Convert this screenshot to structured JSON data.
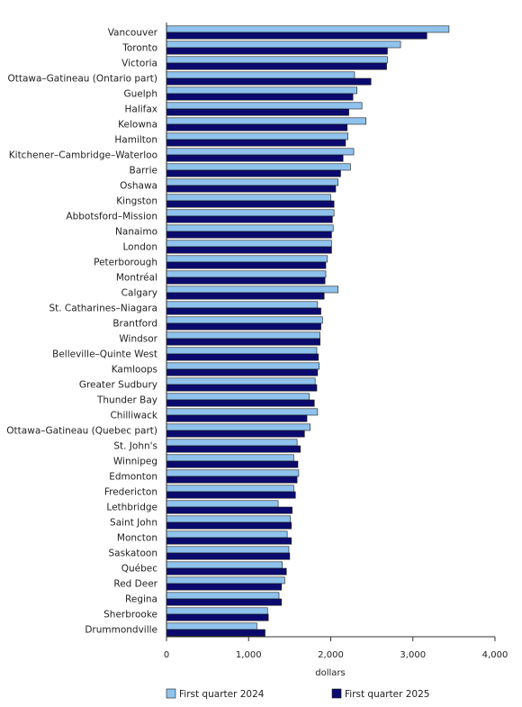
{
  "chart_data": {
    "type": "bar",
    "orientation": "horizontal",
    "categories": [
      "Vancouver",
      "Toronto",
      "Victoria",
      "Ottawa–Gatineau (Ontario part)",
      "Guelph",
      "Halifax",
      "Kelowna",
      "Hamilton",
      "Kitchener–Cambridge–Waterloo",
      "Barrie",
      "Oshawa",
      "Kingston",
      "Abbotsford–Mission",
      "Nanaimo",
      "London",
      "Peterborough",
      "Montréal",
      "Calgary",
      "St. Catharines–Niagara",
      "Brantford",
      "Windsor",
      "Belleville–Quinte West",
      "Kamloops",
      "Greater Sudbury",
      "Thunder Bay",
      "Chilliwack",
      "Ottawa–Gatineau (Quebec part)",
      "St. John's",
      "Winnipeg",
      "Edmonton",
      "Fredericton",
      "Lethbridge",
      "Saint John",
      "Moncton",
      "Saskatoon",
      "Québec",
      "Red Deer",
      "Regina",
      "Sherbrooke",
      "Drummondville"
    ],
    "series": [
      {
        "name": "First quarter 2024",
        "color": "#8fc3ee",
        "values": [
          3440,
          2850,
          2690,
          2290,
          2320,
          2380,
          2430,
          2210,
          2280,
          2240,
          2090,
          2000,
          2040,
          2030,
          2010,
          1960,
          1940,
          2090,
          1840,
          1900,
          1870,
          1830,
          1860,
          1810,
          1740,
          1840,
          1750,
          1590,
          1550,
          1610,
          1550,
          1360,
          1510,
          1470,
          1490,
          1410,
          1440,
          1370,
          1230,
          1100
        ]
      },
      {
        "name": "First quarter 2025",
        "color": "#0a0a6e",
        "values": [
          3170,
          2690,
          2680,
          2490,
          2270,
          2220,
          2200,
          2180,
          2150,
          2120,
          2060,
          2040,
          2020,
          2010,
          2010,
          1940,
          1930,
          1920,
          1880,
          1880,
          1870,
          1850,
          1840,
          1830,
          1800,
          1710,
          1680,
          1630,
          1600,
          1590,
          1570,
          1530,
          1520,
          1520,
          1500,
          1460,
          1400,
          1400,
          1240,
          1200
        ]
      }
    ],
    "xlim": [
      0,
      4000
    ],
    "xticks": [
      0,
      1000,
      2000,
      3000,
      4000
    ],
    "xtick_labels": [
      "0",
      "1,000",
      "2,000",
      "3,000",
      "4,000"
    ],
    "xlabel": "dollars",
    "title": "",
    "grid": false,
    "legend_position": "bottom"
  }
}
